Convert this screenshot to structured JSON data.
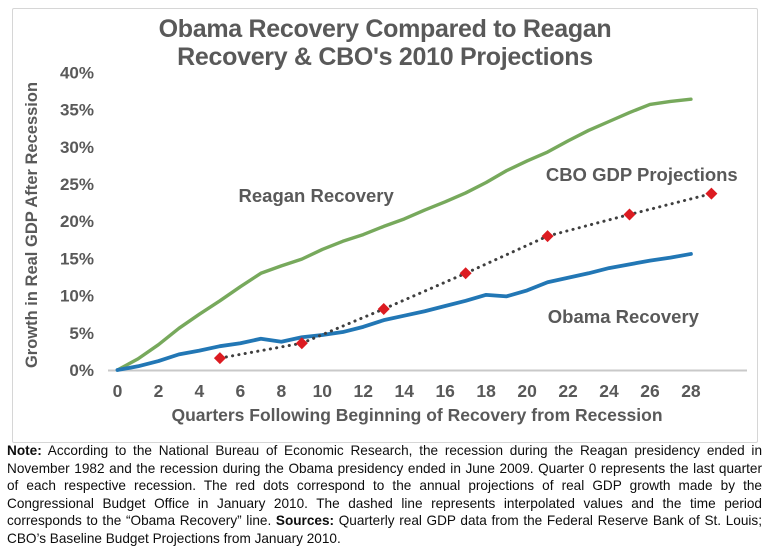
{
  "chart": {
    "title_line1": "Obama Recovery Compared to Reagan",
    "title_line2": "Recovery & CBO's 2010 Projections"
  },
  "chart_data": {
    "type": "line",
    "title": "Obama Recovery Compared to Reagan Recovery & CBO's 2010 Projections",
    "xlabel": "Quarters Following Beginning of Recovery from Recession",
    "ylabel": "Growth in Real GDP After Recession",
    "x_ticks": [
      0,
      2,
      4,
      6,
      8,
      10,
      12,
      14,
      16,
      18,
      20,
      22,
      24,
      26,
      28
    ],
    "y_ticks": [
      "0%",
      "5%",
      "10%",
      "15%",
      "20%",
      "25%",
      "30%",
      "35%",
      "40%"
    ],
    "y_tick_values": [
      0,
      5,
      10,
      15,
      20,
      25,
      30,
      35,
      40
    ],
    "xlim": [
      0,
      29.5
    ],
    "ylim": [
      0,
      40
    ],
    "grid": false,
    "legend": "inline-annotations",
    "axis_color": "#c9c9c9",
    "text_color": "#595959",
    "series": [
      {
        "name": "Reagan Recovery",
        "style": "solid",
        "color": "#77a95c",
        "width": 3.4,
        "x": [
          0,
          1,
          2,
          3,
          4,
          5,
          6,
          7,
          8,
          9,
          10,
          11,
          12,
          13,
          14,
          15,
          16,
          17,
          18,
          19,
          20,
          21,
          22,
          23,
          24,
          25,
          26,
          27,
          28
        ],
        "values": [
          0,
          1.5,
          3.4,
          5.6,
          7.5,
          9.3,
          11.2,
          13.0,
          14.0,
          14.9,
          16.2,
          17.3,
          18.2,
          19.3,
          20.3,
          21.5,
          22.6,
          23.8,
          25.2,
          26.8,
          28.1,
          29.3,
          30.8,
          32.2,
          33.4,
          34.6,
          35.7,
          36.1,
          36.4
        ]
      },
      {
        "name": "Obama Recovery",
        "style": "solid",
        "color": "#2277b5",
        "width": 3.8,
        "x": [
          0,
          1,
          2,
          3,
          4,
          5,
          6,
          7,
          8,
          9,
          10,
          11,
          12,
          13,
          14,
          15,
          16,
          17,
          18,
          19,
          20,
          21,
          22,
          23,
          24,
          25,
          26,
          27,
          28
        ],
        "values": [
          0,
          0.5,
          1.2,
          2.1,
          2.6,
          3.2,
          3.6,
          4.2,
          3.8,
          4.4,
          4.7,
          5.1,
          5.8,
          6.7,
          7.3,
          7.9,
          8.6,
          9.3,
          10.1,
          9.9,
          10.7,
          11.8,
          12.4,
          13.0,
          13.7,
          14.2,
          14.7,
          15.1,
          15.6
        ]
      },
      {
        "name": "CBO GDP Projections",
        "style": "dotted",
        "marker": "diamond",
        "line_color": "#3f3f3f",
        "marker_color": "#dc1b21",
        "width": 3,
        "x": [
          5,
          9,
          13,
          17,
          21,
          25,
          29
        ],
        "values": [
          1.6,
          3.6,
          8.2,
          13.0,
          18.0,
          20.9,
          23.7
        ]
      }
    ],
    "annotations": [
      {
        "text": "Reagan Recovery",
        "color": "#6fa052",
        "x": 9.7,
        "y": 22.6
      },
      {
        "text": "CBO GDP Projections",
        "color": "#c00713",
        "x": 25.6,
        "y": 25.4
      },
      {
        "text": "Obama Recovery",
        "color": "#2176b5",
        "x": 24.7,
        "y": 6.3
      }
    ]
  },
  "note": {
    "note_label": "Note:",
    "note_body": " According to the National Bureau of Economic Research, the recession during the Reagan presidency ended in November 1982 and the recession during the Obama presidency ended in June 2009. Quarter 0 represents the last quarter of each respective recession. The red dots correspond to the annual projections of real GDP growth made by the Congressional Budget Office in January 2010. The dashed line represents interpolated values and the time period corresponds to the “Obama Recovery” line. ",
    "sources_label": "Sources:",
    "sources_body": " Quarterly real GDP data from the Federal Reserve Bank of St. Louis; CBO’s Baseline Budget Projections from January 2010."
  }
}
